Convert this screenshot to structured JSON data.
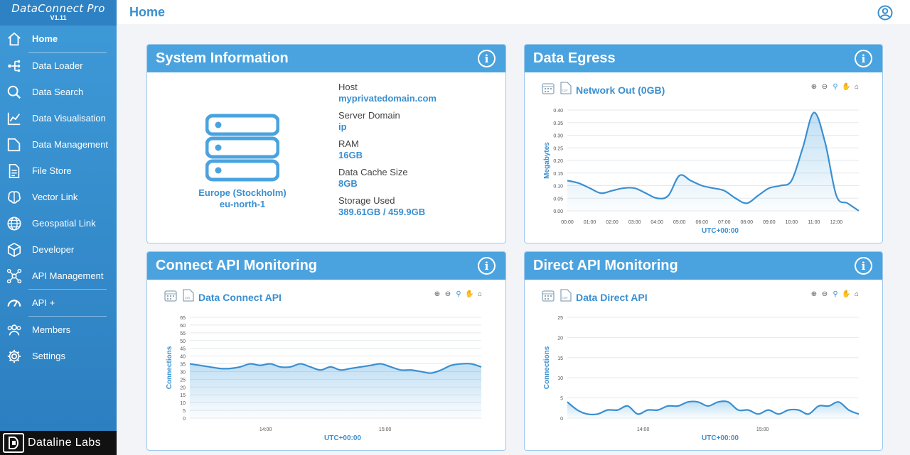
{
  "app": {
    "name": "DataConnect Pro",
    "version": "V1.11"
  },
  "sidebar": {
    "items": [
      {
        "label": "Home",
        "icon": "home-icon",
        "active": true
      },
      {
        "label": "Data Loader",
        "icon": "loader-icon"
      },
      {
        "label": "Data Search",
        "icon": "search-icon"
      },
      {
        "label": "Data Visualisation",
        "icon": "chart-icon"
      },
      {
        "label": "Data Management",
        "icon": "folder-icon"
      },
      {
        "label": "File Store",
        "icon": "file-icon"
      },
      {
        "label": "Vector Link",
        "icon": "brain-icon"
      },
      {
        "label": "Geospatial Link",
        "icon": "globe-icon"
      },
      {
        "label": "Developer",
        "icon": "cube-icon"
      },
      {
        "label": "API Management",
        "icon": "network-icon"
      },
      {
        "label": "API +",
        "icon": "gauge-icon"
      },
      {
        "label": "Members",
        "icon": "members-icon"
      },
      {
        "label": "Settings",
        "icon": "gear-icon"
      }
    ],
    "footer": "Dataline Labs"
  },
  "header": {
    "title": "Home"
  },
  "system_info": {
    "title": "System Information",
    "region": "Europe (Stockholm)",
    "region_code": "eu-north-1",
    "fields": [
      {
        "key": "Host",
        "value": "myprivatedomain.com"
      },
      {
        "key": "Server Domain",
        "value": "ip"
      },
      {
        "key": "RAM",
        "value": "16GB"
      },
      {
        "key": "Data Cache Size",
        "value": "8GB"
      },
      {
        "key": "Storage Used",
        "value": "389.61GB / 459.9GB"
      }
    ]
  },
  "egress": {
    "title": "Data Egress",
    "chart_title": "Network Out (0GB)"
  },
  "connect_api": {
    "title": "Connect API Monitoring",
    "chart_title": "Data Connect API"
  },
  "direct_api": {
    "title": "Direct API Monitoring",
    "chart_title": "Data Direct API"
  },
  "colors": {
    "accent": "#4aa3df",
    "line": "#3a8fd0"
  },
  "chart_data": [
    {
      "type": "area",
      "title": "Network Out (0GB)",
      "xlabel": "UTC+00:00",
      "ylabel": "Megabytes",
      "ylim": [
        0,
        0.4
      ],
      "yticks": [
        "0.00",
        "0.05",
        "0.10",
        "0.15",
        "0.20",
        "0.25",
        "0.30",
        "0.35",
        "0.40"
      ],
      "xticks": [
        "00:00",
        "01:00",
        "02:00",
        "03:00",
        "04:00",
        "05:00",
        "06:00",
        "07:00",
        "08:00",
        "09:00",
        "10:00",
        "11:00",
        "12:00"
      ],
      "x": [
        0,
        0.5,
        1,
        1.5,
        2,
        2.5,
        3,
        3.5,
        4,
        4.5,
        5,
        5.5,
        6,
        6.5,
        7,
        7.5,
        8,
        8.5,
        9,
        9.5,
        10,
        10.5,
        11,
        11.5,
        12,
        12.5,
        13
      ],
      "values": [
        0.12,
        0.11,
        0.09,
        0.07,
        0.08,
        0.09,
        0.09,
        0.07,
        0.05,
        0.06,
        0.14,
        0.12,
        0.1,
        0.09,
        0.08,
        0.05,
        0.03,
        0.06,
        0.09,
        0.1,
        0.12,
        0.25,
        0.39,
        0.27,
        0.06,
        0.03,
        0.0
      ]
    },
    {
      "type": "area",
      "title": "Data Connect API",
      "xlabel": "UTC+00:00",
      "ylabel": "Connections",
      "ylim": [
        0,
        65
      ],
      "yticks": [
        "0",
        "5",
        "10",
        "15",
        "20",
        "25",
        "30",
        "35",
        "40",
        "45",
        "50",
        "55",
        "60",
        "65"
      ],
      "xticks": [
        "14:00",
        "15:00"
      ],
      "xtick_pos": [
        0.26,
        0.67
      ],
      "values": [
        35,
        34,
        33,
        32,
        32,
        33,
        35,
        34,
        35,
        33,
        33,
        35,
        33,
        31,
        33,
        31,
        32,
        33,
        34,
        35,
        33,
        31,
        31,
        30,
        29,
        31,
        34,
        35,
        35,
        33
      ]
    },
    {
      "type": "area",
      "title": "Data Direct API",
      "xlabel": "UTC+00:00",
      "ylabel": "Connections",
      "ylim": [
        0,
        25
      ],
      "yticks": [
        "0",
        "5",
        "10",
        "15",
        "20",
        "25"
      ],
      "xticks": [
        "14:00",
        "15:00"
      ],
      "xtick_pos": [
        0.26,
        0.67
      ],
      "values": [
        4,
        2,
        1,
        1,
        2,
        2,
        3,
        1,
        2,
        2,
        3,
        3,
        4,
        4,
        3,
        4,
        4,
        2,
        2,
        1,
        2,
        1,
        2,
        2,
        1,
        3,
        3,
        4,
        2,
        1
      ]
    }
  ]
}
